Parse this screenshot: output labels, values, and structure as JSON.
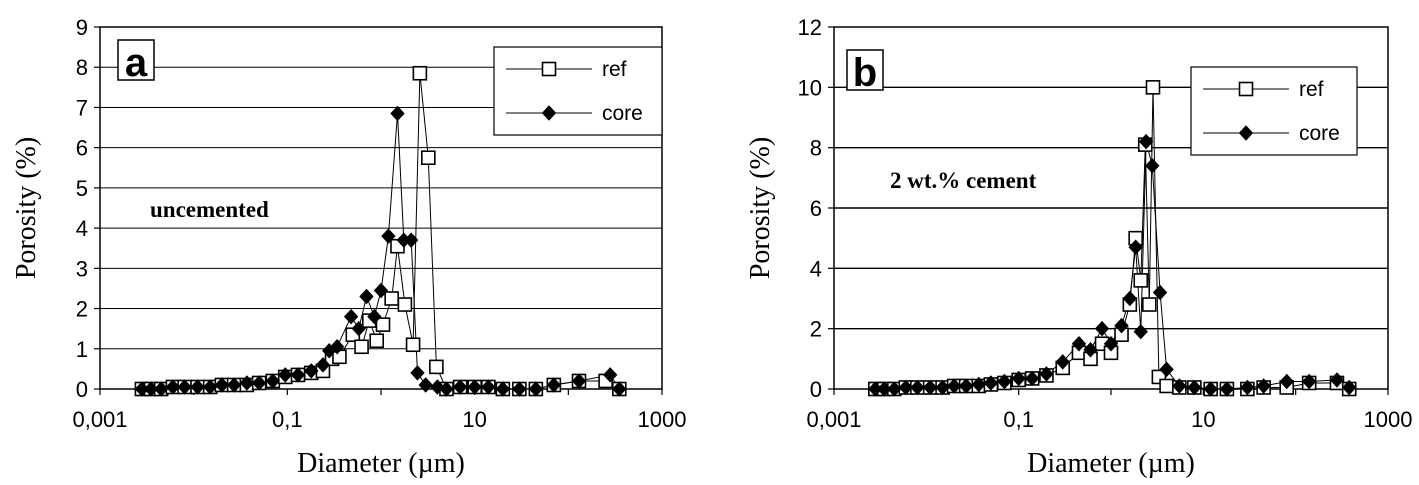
{
  "chart_data": [
    {
      "panel": "a",
      "type": "scatter",
      "xscale": "log",
      "xlim": [
        0.001,
        1000
      ],
      "ylim": [
        0,
        9
      ],
      "xticks": [
        "0,001",
        "0,1",
        "10",
        "1000"
      ],
      "yticks": [
        "0",
        "1",
        "2",
        "3",
        "4",
        "5",
        "6",
        "7",
        "8",
        "9"
      ],
      "xlabel": "Diameter (µm)",
      "ylabel": "Porosity (%)",
      "annotation": "uncemented",
      "grid": "horizontal",
      "legend": "top-right",
      "series": [
        {
          "name": "ref",
          "marker": "open-square",
          "points": [
            [
              0.0028,
              0.0
            ],
            [
              0.0035,
              0.0
            ],
            [
              0.0045,
              0.0
            ],
            [
              0.006,
              0.05
            ],
            [
              0.008,
              0.05
            ],
            [
              0.011,
              0.05
            ],
            [
              0.015,
              0.05
            ],
            [
              0.02,
              0.1
            ],
            [
              0.027,
              0.1
            ],
            [
              0.037,
              0.1
            ],
            [
              0.05,
              0.15
            ],
            [
              0.07,
              0.2
            ],
            [
              0.095,
              0.3
            ],
            [
              0.13,
              0.35
            ],
            [
              0.18,
              0.4
            ],
            [
              0.24,
              0.45
            ],
            [
              0.3,
              0.75
            ],
            [
              0.36,
              0.8
            ],
            [
              0.5,
              1.35
            ],
            [
              0.62,
              1.05
            ],
            [
              0.75,
              1.7
            ],
            [
              0.9,
              1.2
            ],
            [
              1.05,
              1.6
            ],
            [
              1.3,
              2.25
            ],
            [
              1.5,
              3.55
            ],
            [
              1.8,
              2.1
            ],
            [
              2.2,
              1.1
            ],
            [
              2.6,
              7.85
            ],
            [
              3.2,
              5.75
            ],
            [
              3.9,
              0.55
            ],
            [
              5.0,
              0.0
            ],
            [
              7.0,
              0.05
            ],
            [
              10.0,
              0.05
            ],
            [
              14.0,
              0.05
            ],
            [
              20.0,
              0.0
            ],
            [
              30.0,
              0.0
            ],
            [
              45.0,
              0.0
            ],
            [
              70.0,
              0.1
            ],
            [
              130.0,
              0.2
            ],
            [
              250.0,
              0.2
            ],
            [
              350.0,
              0.0
            ]
          ]
        },
        {
          "name": "core",
          "marker": "filled-diamond",
          "points": [
            [
              0.0028,
              0.0
            ],
            [
              0.0035,
              0.0
            ],
            [
              0.0045,
              0.0
            ],
            [
              0.006,
              0.05
            ],
            [
              0.008,
              0.05
            ],
            [
              0.011,
              0.05
            ],
            [
              0.015,
              0.05
            ],
            [
              0.02,
              0.1
            ],
            [
              0.027,
              0.1
            ],
            [
              0.037,
              0.15
            ],
            [
              0.05,
              0.15
            ],
            [
              0.07,
              0.2
            ],
            [
              0.095,
              0.35
            ],
            [
              0.13,
              0.35
            ],
            [
              0.18,
              0.45
            ],
            [
              0.24,
              0.6
            ],
            [
              0.28,
              0.95
            ],
            [
              0.34,
              1.05
            ],
            [
              0.48,
              1.8
            ],
            [
              0.58,
              1.5
            ],
            [
              0.7,
              2.3
            ],
            [
              0.85,
              1.8
            ],
            [
              1.0,
              2.45
            ],
            [
              1.2,
              3.8
            ],
            [
              1.5,
              6.85
            ],
            [
              1.75,
              3.7
            ],
            [
              2.1,
              3.7
            ],
            [
              2.45,
              0.4
            ],
            [
              3.0,
              0.1
            ],
            [
              4.0,
              0.05
            ],
            [
              5.0,
              0.0
            ],
            [
              7.0,
              0.05
            ],
            [
              10.0,
              0.05
            ],
            [
              14.0,
              0.05
            ],
            [
              20.0,
              0.0
            ],
            [
              30.0,
              0.0
            ],
            [
              45.0,
              0.0
            ],
            [
              70.0,
              0.1
            ],
            [
              130.0,
              0.2
            ],
            [
              280.0,
              0.35
            ],
            [
              350.0,
              0.0
            ]
          ]
        }
      ]
    },
    {
      "panel": "b",
      "type": "scatter",
      "xscale": "log",
      "xlim": [
        0.001,
        1000
      ],
      "ylim": [
        0,
        12
      ],
      "xticks": [
        "0,001",
        "0,1",
        "10",
        "1000"
      ],
      "yticks": [
        "0",
        "2",
        "4",
        "6",
        "8",
        "10",
        "12"
      ],
      "xlabel": "Diameter (µm)",
      "ylabel": "Porosity (%)",
      "annotation": "2 wt.% cement",
      "grid": "horizontal",
      "legend": "top-right",
      "series": [
        {
          "name": "ref",
          "marker": "open-square",
          "points": [
            [
              0.0028,
              0.0
            ],
            [
              0.0035,
              0.0
            ],
            [
              0.0045,
              0.0
            ],
            [
              0.006,
              0.05
            ],
            [
              0.008,
              0.05
            ],
            [
              0.011,
              0.05
            ],
            [
              0.015,
              0.05
            ],
            [
              0.02,
              0.1
            ],
            [
              0.027,
              0.1
            ],
            [
              0.037,
              0.1
            ],
            [
              0.05,
              0.15
            ],
            [
              0.07,
              0.2
            ],
            [
              0.1,
              0.3
            ],
            [
              0.14,
              0.35
            ],
            [
              0.2,
              0.45
            ],
            [
              0.3,
              0.7
            ],
            [
              0.45,
              1.2
            ],
            [
              0.6,
              1.0
            ],
            [
              0.8,
              1.5
            ],
            [
              1.0,
              1.2
            ],
            [
              1.3,
              1.8
            ],
            [
              1.6,
              2.8
            ],
            [
              1.85,
              5.0
            ],
            [
              2.1,
              3.6
            ],
            [
              2.35,
              8.1
            ],
            [
              2.6,
              2.8
            ],
            [
              2.85,
              10.0
            ],
            [
              3.3,
              0.4
            ],
            [
              4.0,
              0.1
            ],
            [
              5.5,
              0.05
            ],
            [
              8.0,
              0.05
            ],
            [
              12.0,
              0.0
            ],
            [
              18.0,
              0.0
            ],
            [
              30.0,
              0.0
            ],
            [
              45.0,
              0.05
            ],
            [
              80.0,
              0.05
            ],
            [
              140.0,
              0.2
            ],
            [
              280.0,
              0.2
            ],
            [
              380.0,
              0.0
            ]
          ]
        },
        {
          "name": "core",
          "marker": "filled-diamond",
          "points": [
            [
              0.0028,
              0.0
            ],
            [
              0.0035,
              0.0
            ],
            [
              0.0045,
              0.0
            ],
            [
              0.006,
              0.05
            ],
            [
              0.008,
              0.05
            ],
            [
              0.011,
              0.05
            ],
            [
              0.015,
              0.05
            ],
            [
              0.02,
              0.1
            ],
            [
              0.027,
              0.1
            ],
            [
              0.037,
              0.15
            ],
            [
              0.05,
              0.2
            ],
            [
              0.07,
              0.25
            ],
            [
              0.1,
              0.35
            ],
            [
              0.14,
              0.35
            ],
            [
              0.2,
              0.5
            ],
            [
              0.3,
              0.9
            ],
            [
              0.45,
              1.5
            ],
            [
              0.6,
              1.3
            ],
            [
              0.8,
              2.0
            ],
            [
              1.0,
              1.5
            ],
            [
              1.3,
              2.1
            ],
            [
              1.6,
              3.0
            ],
            [
              1.85,
              4.7
            ],
            [
              2.1,
              1.9
            ],
            [
              2.4,
              8.2
            ],
            [
              2.8,
              7.4
            ],
            [
              3.4,
              3.2
            ],
            [
              4.0,
              0.65
            ],
            [
              5.5,
              0.1
            ],
            [
              8.0,
              0.05
            ],
            [
              12.0,
              0.0
            ],
            [
              18.0,
              0.0
            ],
            [
              30.0,
              0.05
            ],
            [
              45.0,
              0.1
            ],
            [
              80.0,
              0.25
            ],
            [
              140.0,
              0.25
            ],
            [
              280.0,
              0.3
            ],
            [
              380.0,
              0.05
            ]
          ]
        }
      ]
    }
  ]
}
